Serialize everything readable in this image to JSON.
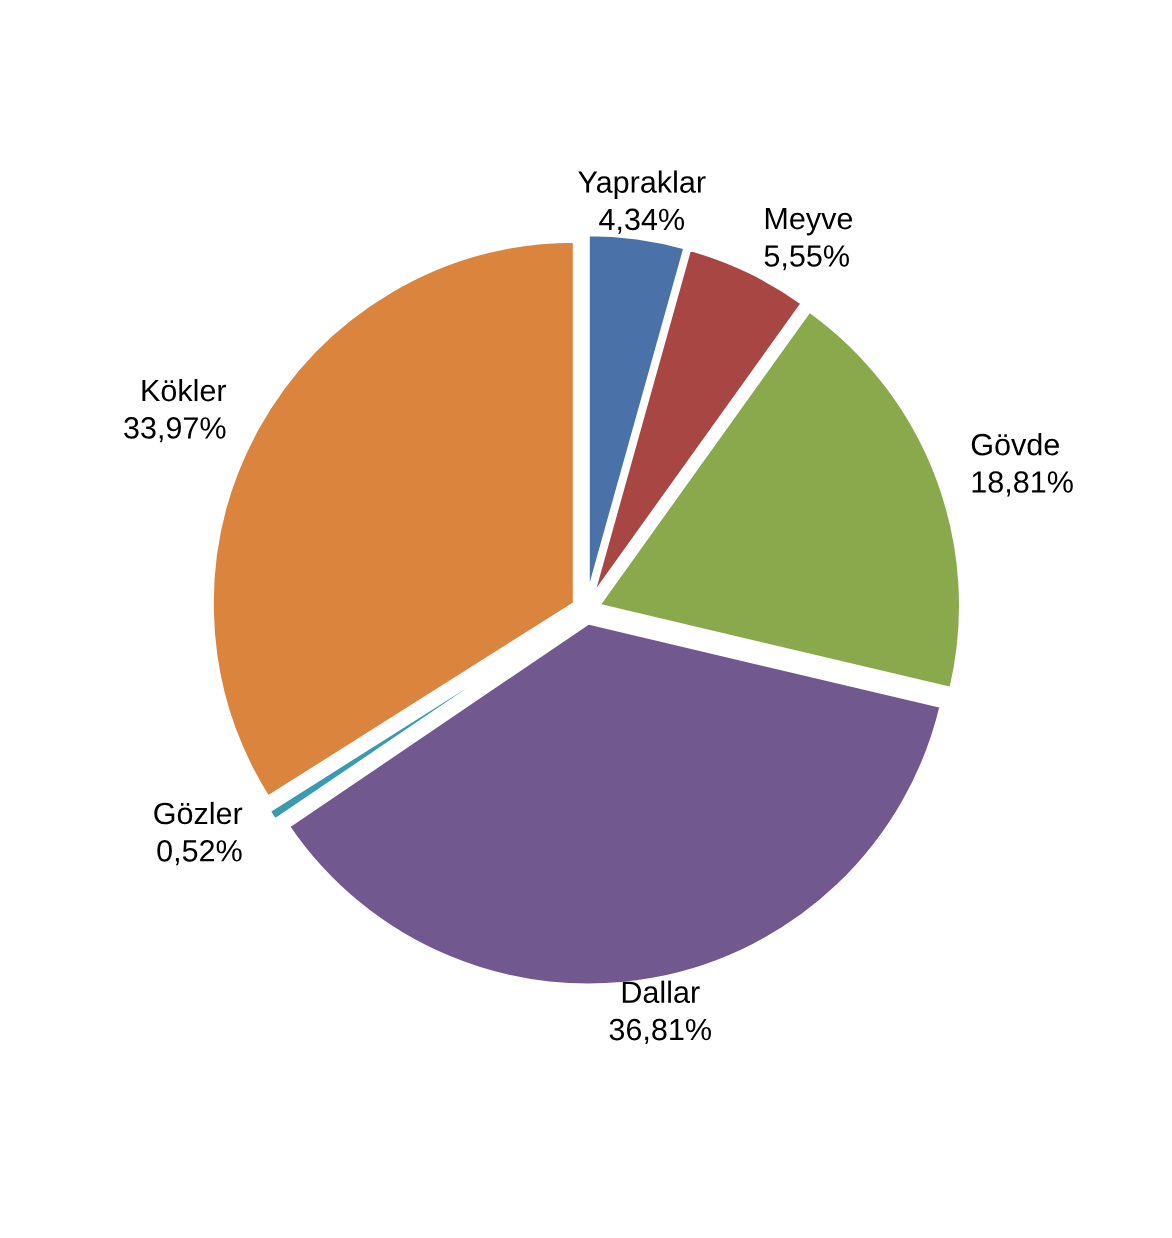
{
  "chart_data": {
    "type": "pie",
    "categories": [
      "Yapraklar",
      "Meyve",
      "Gövde",
      "Dallar",
      "Gözler",
      "Kökler"
    ],
    "values": [
      4.34,
      5.55,
      18.81,
      36.81,
      0.52,
      33.97
    ],
    "value_labels": [
      "4,34%",
      "5,55%",
      "18,81%",
      "36,81%",
      "0,52%",
      "33,97%"
    ],
    "colors": [
      "#4a72a8",
      "#a84644",
      "#8aa84c",
      "#71588f",
      "#3a9ab0",
      "#db843d"
    ],
    "legend": false
  }
}
